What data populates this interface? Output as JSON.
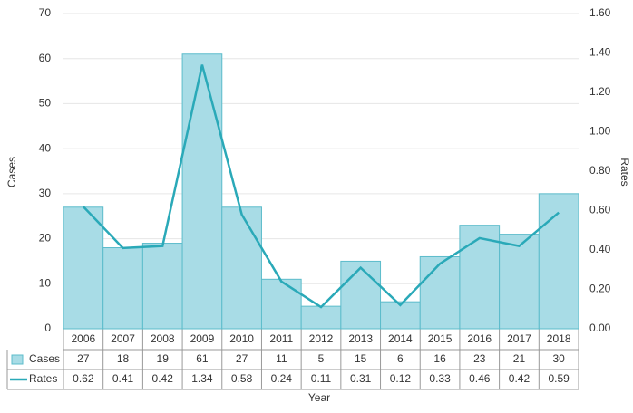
{
  "chart_data": {
    "type": "bar-line",
    "x_label": "Year",
    "y_label": "Cases",
    "y2_label": "Rates",
    "categories": [
      "2006",
      "2007",
      "2008",
      "2009",
      "2010",
      "2011",
      "2012",
      "2013",
      "2014",
      "2015",
      "2016",
      "2017",
      "2018"
    ],
    "series": [
      {
        "name": "Cases",
        "type": "bar",
        "color": "#a8dce6",
        "values": [
          27,
          18,
          19,
          61,
          27,
          11,
          5,
          15,
          6,
          16,
          23,
          21,
          30
        ]
      },
      {
        "name": "Rates",
        "type": "line",
        "axis": "y2",
        "color": "#2aa9b8",
        "values": [
          0.62,
          0.41,
          0.42,
          1.34,
          0.58,
          0.24,
          0.11,
          0.31,
          0.12,
          0.33,
          0.46,
          0.42,
          0.59
        ]
      }
    ],
    "ylim": [
      0,
      70
    ],
    "yticks": [
      0,
      10,
      20,
      30,
      40,
      50,
      60,
      70
    ],
    "y2lim": [
      0,
      1.6
    ],
    "y2ticks": [
      {
        "value": 0,
        "label": "0.00"
      },
      {
        "value": 0.2,
        "label": "0.20"
      },
      {
        "value": 0.4,
        "label": "0.40"
      },
      {
        "value": 0.6,
        "label": "0.60"
      },
      {
        "value": 0.8,
        "label": "0.80"
      },
      {
        "value": 1,
        "label": "1.00"
      },
      {
        "value": 1.2,
        "label": "1.20"
      },
      {
        "value": 1.4,
        "label": "1.40"
      },
      {
        "value": 1.6,
        "label": "1.60"
      }
    ],
    "grid": true
  }
}
